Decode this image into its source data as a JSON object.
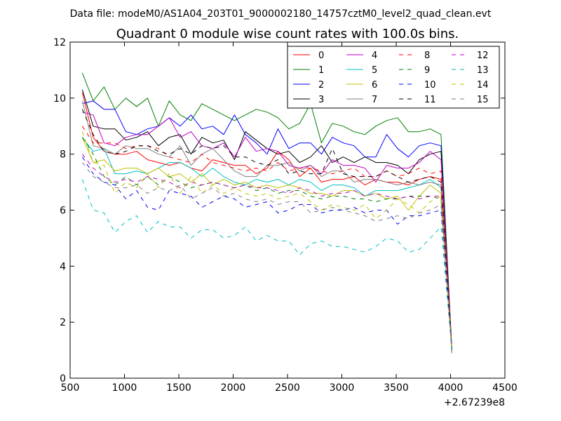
{
  "header": {
    "suptitle": "Data file: modeM0/AS1A04_203T01_9000002180_14757cztM0_level2_quad_clean.evt"
  },
  "chart_data": {
    "type": "line",
    "title": "Quadrant 0 module wise count rates with 100.0s bins.",
    "xlabel": "",
    "ylabel": "",
    "x_offset_label": "+2.67239e8",
    "xlim": [
      500,
      4500
    ],
    "ylim": [
      0,
      12
    ],
    "xticks": [
      500,
      1000,
      1500,
      2000,
      2500,
      3000,
      3500,
      4000,
      4500
    ],
    "yticks": [
      0,
      2,
      4,
      6,
      8,
      10,
      12
    ],
    "grid": false,
    "legend_position": "top-right",
    "legend_columns": 4,
    "x": [
      612,
      712,
      812,
      912,
      1012,
      1112,
      1212,
      1312,
      1412,
      1512,
      1612,
      1712,
      1812,
      1912,
      2012,
      2112,
      2212,
      2312,
      2412,
      2512,
      2612,
      2712,
      2812,
      2912,
      3012,
      3112,
      3212,
      3312,
      3412,
      3512,
      3612,
      3712,
      3812,
      3912,
      4012
    ],
    "series": [
      {
        "name": "0",
        "color": "#ff0000",
        "dash": "solid",
        "values": [
          10.2,
          8.6,
          8.1,
          8.0,
          8.0,
          8.1,
          7.8,
          7.7,
          7.6,
          7.7,
          7.5,
          7.4,
          7.8,
          7.7,
          7.6,
          7.6,
          7.3,
          7.5,
          8.1,
          7.8,
          7.2,
          7.5,
          7.0,
          7.1,
          7.1,
          7.2,
          6.9,
          7.1,
          7.0,
          7.0,
          6.9,
          7.1,
          7.2,
          7.1,
          1.0
        ]
      },
      {
        "name": "1",
        "color": "#008000",
        "dash": "solid",
        "values": [
          10.9,
          9.9,
          10.4,
          9.6,
          10.0,
          9.7,
          10.0,
          9.0,
          9.9,
          9.4,
          9.2,
          9.8,
          9.6,
          9.4,
          9.2,
          9.4,
          9.6,
          9.5,
          9.3,
          8.9,
          9.1,
          9.8,
          8.4,
          9.1,
          9.0,
          8.8,
          8.7,
          9.0,
          9.2,
          9.3,
          8.8,
          8.8,
          8.9,
          8.7,
          1.0
        ]
      },
      {
        "name": "2",
        "color": "#0000ff",
        "dash": "solid",
        "values": [
          9.8,
          9.9,
          9.6,
          9.6,
          8.8,
          8.7,
          8.9,
          9.0,
          9.3,
          9.0,
          9.4,
          8.9,
          9.0,
          8.7,
          9.4,
          8.7,
          8.4,
          8.0,
          8.9,
          8.2,
          8.4,
          8.4,
          8.0,
          8.6,
          8.4,
          8.3,
          7.9,
          7.9,
          8.7,
          8.2,
          7.9,
          8.3,
          8.4,
          8.3,
          0.9
        ]
      },
      {
        "name": "3",
        "color": "#000000",
        "dash": "solid",
        "values": [
          10.3,
          9.0,
          8.9,
          8.9,
          8.5,
          8.6,
          8.8,
          8.3,
          8.6,
          8.7,
          8.0,
          8.6,
          8.4,
          8.5,
          7.8,
          8.8,
          8.5,
          8.2,
          8.0,
          8.1,
          7.7,
          7.9,
          8.3,
          7.7,
          7.9,
          7.7,
          7.9,
          7.7,
          7.7,
          7.6,
          7.3,
          7.8,
          8.0,
          8.1,
          1.0
        ]
      },
      {
        "name": "4",
        "color": "#bf00bf",
        "dash": "solid",
        "values": [
          9.5,
          9.4,
          8.4,
          8.3,
          8.6,
          8.7,
          8.7,
          9.0,
          9.3,
          8.6,
          8.8,
          8.3,
          8.2,
          8.4,
          7.9,
          8.6,
          8.1,
          8.2,
          8.1,
          7.6,
          7.5,
          7.6,
          7.3,
          7.8,
          7.6,
          7.6,
          7.5,
          7.0,
          7.6,
          7.5,
          7.5,
          7.7,
          8.1,
          7.8,
          1.0
        ]
      },
      {
        "name": "5",
        "color": "#00bfbf",
        "dash": "solid",
        "values": [
          8.6,
          8.1,
          8.2,
          7.3,
          7.3,
          7.4,
          7.3,
          7.5,
          7.7,
          7.7,
          7.5,
          7.2,
          7.5,
          7.2,
          7.0,
          6.9,
          7.1,
          7.0,
          7.1,
          6.9,
          7.1,
          7.0,
          6.7,
          6.9,
          6.9,
          6.8,
          6.5,
          6.7,
          6.7,
          6.7,
          6.8,
          6.9,
          7.1,
          6.8,
          0.9
        ]
      },
      {
        "name": "6",
        "color": "#bfbf00",
        "dash": "solid",
        "values": [
          8.6,
          7.7,
          7.8,
          7.4,
          7.5,
          7.5,
          7.3,
          7.5,
          7.2,
          7.3,
          7.0,
          7.3,
          6.9,
          7.1,
          6.9,
          7.0,
          6.8,
          6.9,
          6.8,
          6.9,
          6.8,
          6.6,
          6.6,
          6.5,
          6.7,
          6.7,
          6.5,
          6.6,
          6.4,
          6.5,
          6.0,
          6.5,
          6.9,
          6.6,
          0.9
        ]
      },
      {
        "name": "7",
        "color": "#808080",
        "dash": "solid",
        "values": [
          9.9,
          8.3,
          8.2,
          8.0,
          8.3,
          8.2,
          8.2,
          8.0,
          7.9,
          8.3,
          7.6,
          8.0,
          8.2,
          7.8,
          7.4,
          7.2,
          7.2,
          7.6,
          7.6,
          7.7,
          7.4,
          7.6,
          7.2,
          7.4,
          7.4,
          7.0,
          7.1,
          7.1,
          7.0,
          6.9,
          7.0,
          6.9,
          7.0,
          6.9,
          0.9
        ]
      },
      {
        "name": "8",
        "color": "#ff0000",
        "dash": "dashed",
        "values": [
          9.0,
          8.4,
          8.4,
          8.4,
          8.2,
          8.3,
          8.3,
          8.2,
          7.9,
          7.8,
          7.7,
          8.0,
          7.7,
          7.6,
          7.5,
          7.4,
          7.5,
          7.4,
          7.7,
          7.4,
          7.5,
          7.5,
          7.4,
          7.3,
          7.4,
          7.5,
          7.2,
          7.2,
          7.4,
          7.2,
          7.3,
          7.5,
          7.3,
          7.4,
          1.0
        ]
      },
      {
        "name": "9",
        "color": "#008000",
        "dash": "dashed",
        "values": [
          8.6,
          8.0,
          7.2,
          6.9,
          7.2,
          6.9,
          7.2,
          6.9,
          7.2,
          7.0,
          6.8,
          6.9,
          7.0,
          6.9,
          6.8,
          6.9,
          6.7,
          6.8,
          6.6,
          6.7,
          6.7,
          6.5,
          6.4,
          6.5,
          6.5,
          6.4,
          6.4,
          6.3,
          6.4,
          6.4,
          6.5,
          6.5,
          6.5,
          6.4,
          1.0
        ]
      },
      {
        "name": "10",
        "color": "#0000ff",
        "dash": "dashed",
        "values": [
          7.9,
          7.3,
          7.0,
          6.9,
          6.4,
          6.7,
          6.1,
          6.0,
          6.7,
          6.6,
          6.5,
          6.1,
          6.3,
          6.5,
          6.4,
          6.1,
          6.2,
          6.3,
          5.9,
          6.0,
          6.2,
          6.2,
          5.9,
          6.0,
          6.0,
          6.1,
          5.9,
          6.0,
          6.0,
          5.5,
          5.8,
          5.8,
          5.9,
          6.0,
          1.0
        ]
      },
      {
        "name": "11",
        "color": "#000000",
        "dash": "dashed",
        "values": [
          9.6,
          8.7,
          8.1,
          8.0,
          8.1,
          8.3,
          8.3,
          8.1,
          8.0,
          8.2,
          8.0,
          8.3,
          8.2,
          8.3,
          7.9,
          7.9,
          7.7,
          7.6,
          7.8,
          7.3,
          7.4,
          7.3,
          7.3,
          8.2,
          7.3,
          7.2,
          7.2,
          7.2,
          7.4,
          7.2,
          7.0,
          7.1,
          7.2,
          7.0,
          1.0
        ]
      },
      {
        "name": "12",
        "color": "#bf00bf",
        "dash": "dashed",
        "values": [
          8.0,
          7.5,
          7.2,
          7.0,
          7.1,
          7.0,
          7.2,
          7.1,
          7.0,
          6.8,
          7.0,
          6.9,
          7.0,
          6.9,
          6.8,
          6.9,
          6.8,
          6.8,
          6.7,
          6.6,
          6.8,
          6.7,
          6.5,
          6.6,
          6.6,
          6.7,
          6.5,
          6.6,
          6.5,
          6.4,
          6.5,
          6.4,
          6.5,
          6.5,
          1.0
        ]
      },
      {
        "name": "13",
        "color": "#00bfbf",
        "dash": "dashed",
        "values": [
          7.1,
          6.0,
          5.9,
          5.2,
          5.6,
          5.8,
          5.2,
          5.6,
          5.4,
          5.4,
          5.0,
          5.3,
          5.3,
          5.0,
          5.1,
          5.4,
          4.9,
          5.1,
          4.9,
          4.9,
          4.4,
          4.8,
          4.9,
          4.7,
          4.7,
          4.6,
          4.5,
          4.7,
          5.0,
          4.9,
          4.5,
          4.6,
          5.0,
          5.4,
          1.0
        ]
      },
      {
        "name": "14",
        "color": "#bfbf00",
        "dash": "dashed",
        "values": [
          8.8,
          7.7,
          7.6,
          6.6,
          7.0,
          6.8,
          7.3,
          6.8,
          7.3,
          6.6,
          7.2,
          6.6,
          6.9,
          6.6,
          6.8,
          6.6,
          6.5,
          6.6,
          6.4,
          6.5,
          6.6,
          6.3,
          6.0,
          6.2,
          6.1,
          6.0,
          6.2,
          5.7,
          6.0,
          6.4,
          6.2,
          5.9,
          6.3,
          6.5,
          0.9
        ]
      },
      {
        "name": "15",
        "color": "#808080",
        "dash": "dashed",
        "values": [
          7.7,
          7.2,
          7.0,
          6.8,
          6.8,
          6.9,
          6.6,
          6.8,
          6.7,
          6.9,
          6.4,
          6.6,
          6.8,
          6.5,
          6.6,
          6.4,
          6.3,
          6.4,
          6.2,
          6.3,
          6.3,
          5.9,
          6.0,
          6.1,
          6.0,
          5.9,
          5.8,
          5.6,
          5.7,
          5.8,
          5.7,
          5.9,
          6.0,
          6.2,
          0.9
        ]
      }
    ]
  }
}
